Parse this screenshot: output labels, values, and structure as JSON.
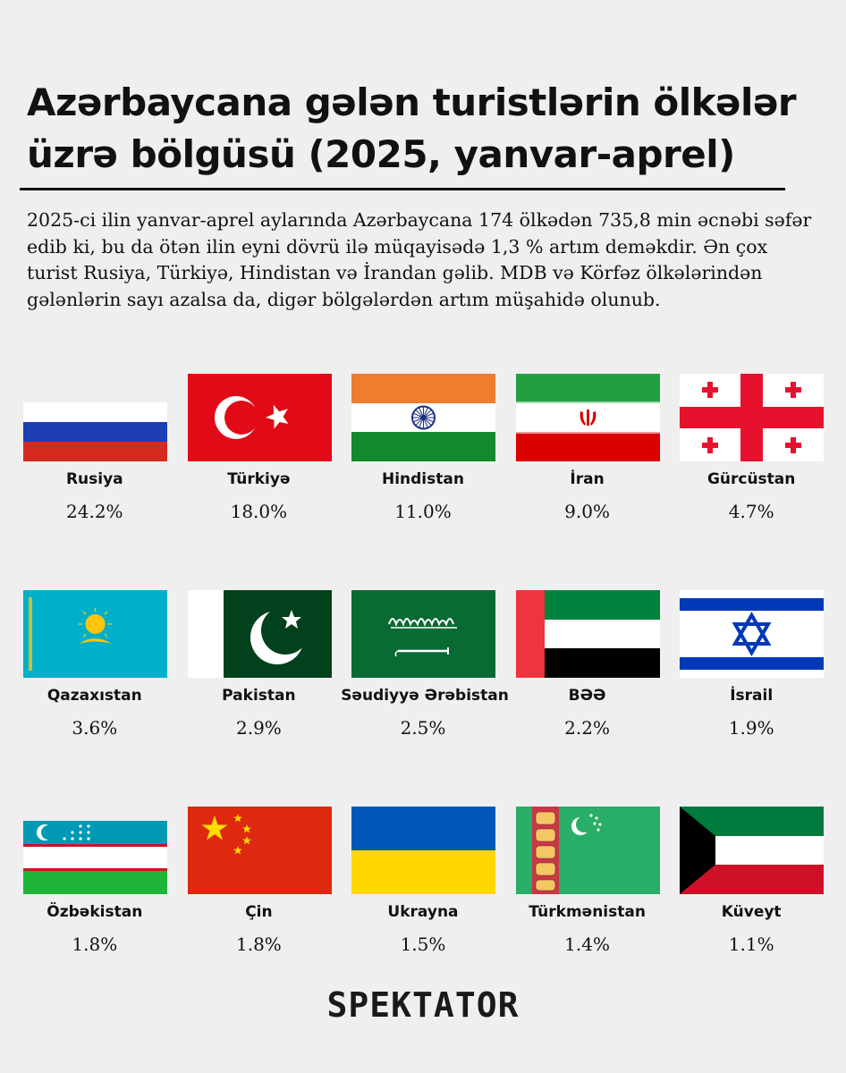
{
  "header": {
    "title": "Azərbaycana gələn turistlərin ölkələr üzrə bölgüsü (2025, yanvar-aprel)",
    "description": "2025-ci ilin yanvar-aprel aylarında Azərbaycana 174 ölkədən 735,8 min əcnəbi səfər edib ki, bu da ötən ilin eyni dövrü ilə müqayisədə 1,3 % artım deməkdir. Ən çox turist Rusiya, Türkiyə, Hindistan və İrandan gəlib. MDB və Körfəz ölkələrindən gələnlərin sayı azalsa da, digər bölgələrdən artım müşahidə olunub."
  },
  "chart_data": {
    "type": "table",
    "unit": "%",
    "categories": [
      "Rusiya",
      "Türkiyə",
      "Hindistan",
      "İran",
      "Gürcüstan",
      "Qazaxıstan",
      "Pakistan",
      "Səudiyyə Ərəbistan",
      "BƏƏ",
      "İsrail",
      "Özbəkistan",
      "Çin",
      "Ukrayna",
      "Türkmənistan",
      "Küveyt"
    ],
    "values": [
      24.2,
      18.0,
      11.0,
      9.0,
      4.7,
      3.6,
      2.9,
      2.5,
      2.2,
      1.9,
      1.8,
      1.8,
      1.5,
      1.4,
      1.1
    ],
    "value_labels": [
      "24.2%",
      "18.0%",
      "11.0%",
      "9.0%",
      "4.7%",
      "3.6%",
      "2.9%",
      "2.5%",
      "2.2%",
      "1.9%",
      "1.8%",
      "1.8%",
      "1.5%",
      "1.4%",
      "1.1%"
    ],
    "flags": [
      "russia-flag",
      "turkey-flag",
      "india-flag",
      "iran-flag",
      "georgia-flag",
      "kazakhstan-flag",
      "pakistan-flag",
      "saudi-arabia-flag",
      "uae-flag",
      "israel-flag",
      "uzbekistan-flag",
      "china-flag",
      "ukraine-flag",
      "turkmenistan-flag",
      "kuwait-flag"
    ]
  },
  "colors": {
    "background": "#efefef",
    "text": "#111111"
  },
  "footer": {
    "logo": "SPEKTATOR"
  }
}
